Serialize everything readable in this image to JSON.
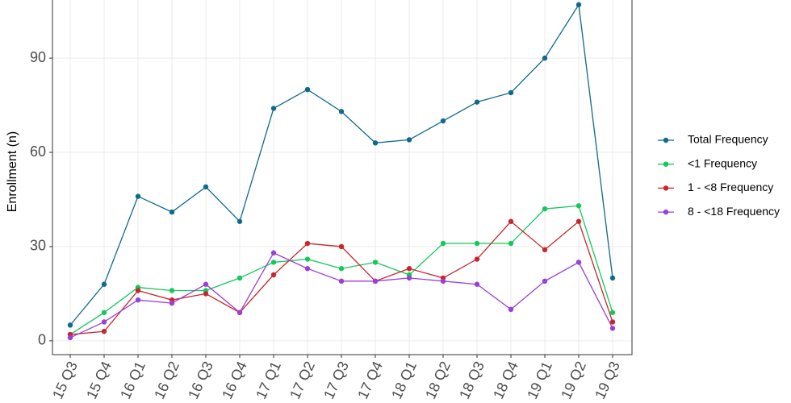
{
  "chart_data": {
    "type": "line",
    "y_label": "Enrollment (n)",
    "categories": [
      "15 Q3",
      "15 Q4",
      "16 Q1",
      "16 Q2",
      "16 Q3",
      "16 Q4",
      "17 Q1",
      "17 Q2",
      "17 Q3",
      "17 Q4",
      "18 Q1",
      "18 Q2",
      "18 Q3",
      "18 Q4",
      "19 Q1",
      "19 Q2",
      "19 Q3"
    ],
    "series": [
      {
        "name": "Total Frequency",
        "color": "#0f6a8c",
        "values": [
          5,
          18,
          46,
          41,
          49,
          38,
          74,
          80,
          73,
          63,
          64,
          70,
          76,
          79,
          90,
          107,
          20
        ]
      },
      {
        "name": "<1 Frequency",
        "color": "#14c85c",
        "values": [
          2,
          9,
          17,
          16,
          16,
          20,
          25,
          26,
          23,
          25,
          21,
          31,
          31,
          31,
          42,
          43,
          9
        ]
      },
      {
        "name": "1 - <8 Frequency",
        "color": "#c9262b",
        "values": [
          2,
          3,
          16,
          13,
          15,
          9,
          21,
          31,
          30,
          19,
          23,
          20,
          26,
          38,
          29,
          38,
          6
        ]
      },
      {
        "name": "8 - <18 Frequency",
        "color": "#9b3fd6",
        "values": [
          1,
          6,
          13,
          12,
          18,
          9,
          28,
          23,
          19,
          19,
          20,
          19,
          18,
          10,
          19,
          25,
          4
        ]
      }
    ],
    "ylim": [
      -4.4,
      108.5
    ],
    "yticks": [
      0,
      30,
      60,
      90
    ],
    "grid": true
  }
}
